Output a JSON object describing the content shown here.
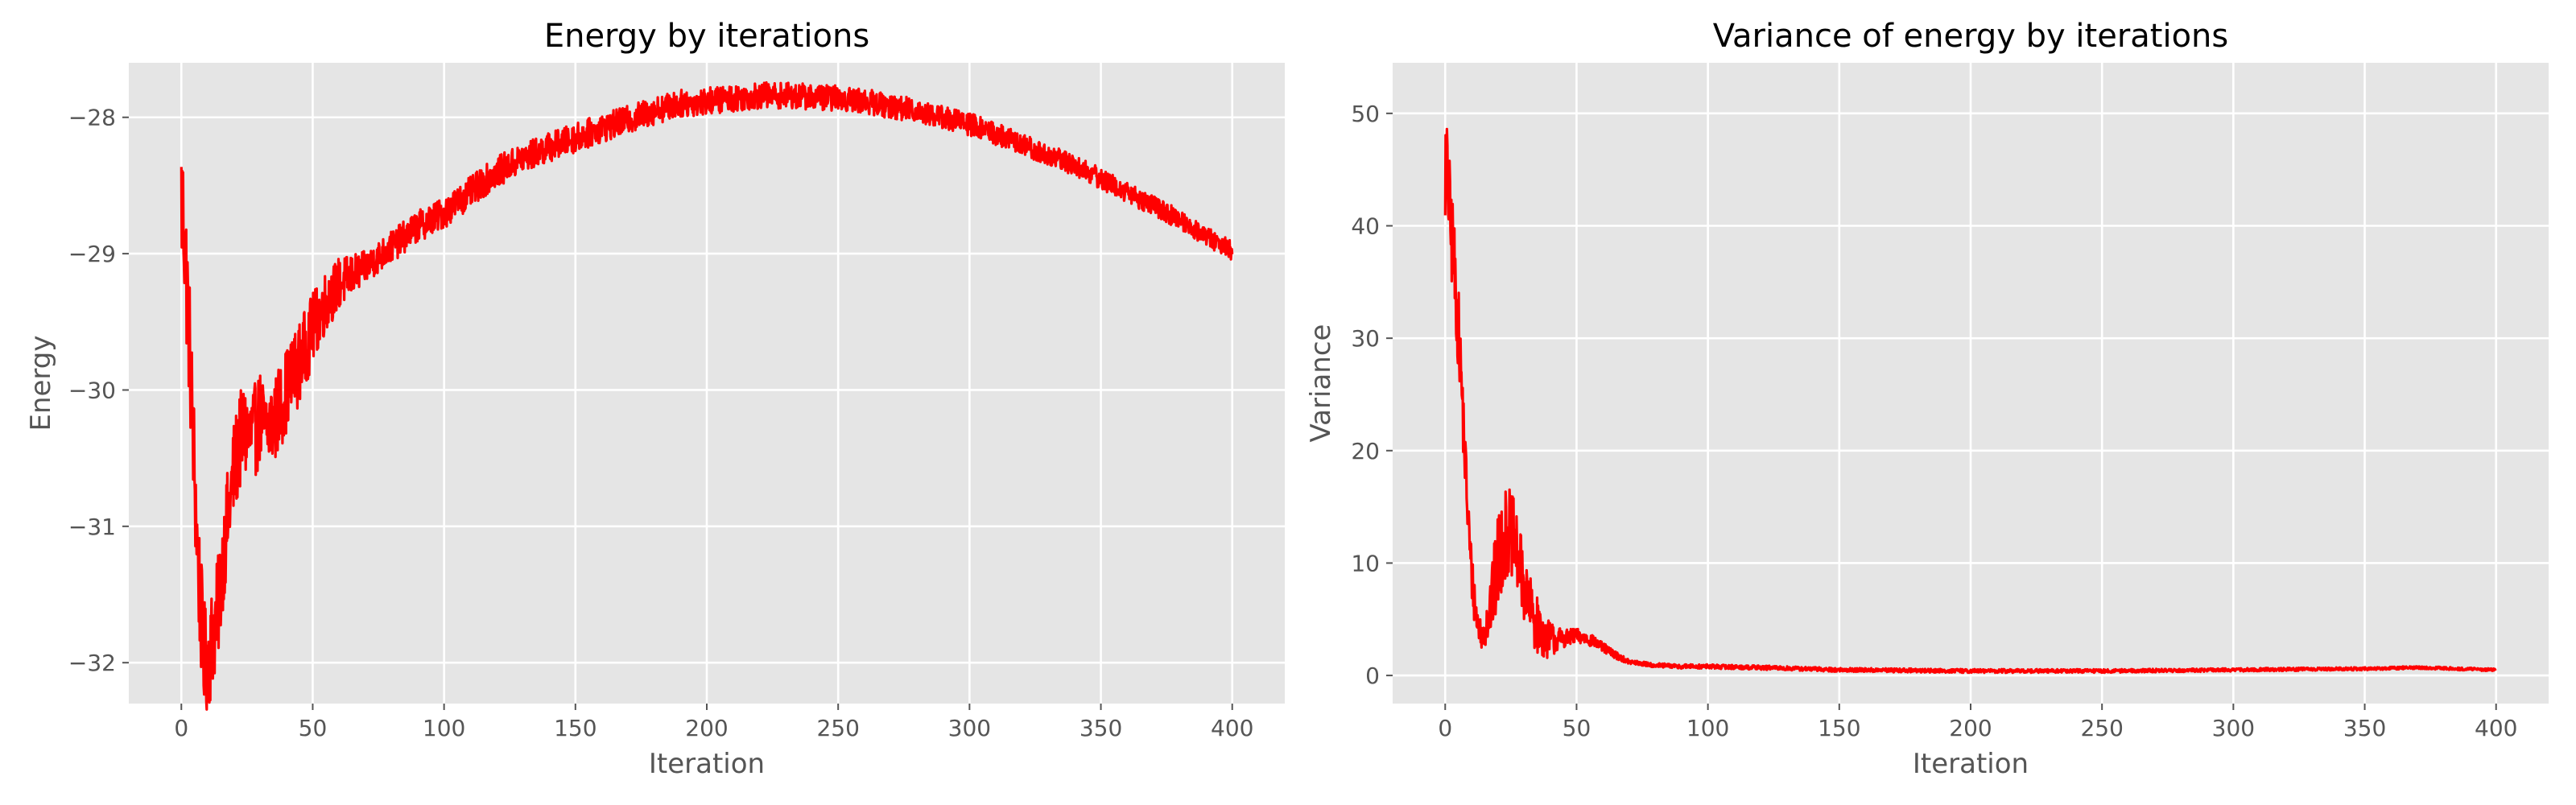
{
  "chart_data": [
    {
      "type": "line",
      "title": "Energy by iterations",
      "xlabel": "Iteration",
      "ylabel": "Energy",
      "xlim": [
        -20,
        420
      ],
      "ylim": [
        -32.3,
        -27.6
      ],
      "xticks": [
        0,
        50,
        100,
        150,
        200,
        250,
        300,
        350,
        400
      ],
      "yticks": [
        -32,
        -31,
        -30,
        -29,
        -28
      ],
      "ytick_labels": [
        "−32",
        "−31",
        "−30",
        "−29",
        "−28"
      ],
      "grid": true,
      "color": "#ff0000",
      "noise": [
        [
          0,
          0.55
        ],
        [
          10,
          0.4
        ],
        [
          45,
          0.3
        ],
        [
          70,
          0.12
        ],
        [
          400,
          0.07
        ]
      ],
      "series": [
        {
          "x": [
            0,
            1,
            2,
            3,
            4,
            5,
            6,
            7,
            8,
            9,
            10,
            11,
            12,
            14,
            16,
            18,
            20,
            22,
            24,
            26,
            28,
            30,
            32,
            34,
            36,
            38,
            40,
            45,
            50,
            55,
            60,
            70,
            80,
            90,
            100,
            110,
            120,
            130,
            140,
            150,
            160,
            170,
            180,
            190,
            200,
            210,
            220,
            230,
            240,
            250,
            260,
            270,
            280,
            290,
            300,
            310,
            320,
            330,
            340,
            350,
            360,
            370,
            380,
            390,
            400
          ],
          "y": [
            -28.6,
            -28.8,
            -29.2,
            -29.6,
            -30.1,
            -30.6,
            -31.1,
            -31.5,
            -31.8,
            -32.0,
            -31.95,
            -31.9,
            -31.8,
            -31.6,
            -31.2,
            -30.9,
            -30.6,
            -30.4,
            -30.3,
            -30.35,
            -30.3,
            -30.2,
            -30.3,
            -30.25,
            -30.2,
            -30.1,
            -30.0,
            -29.8,
            -29.55,
            -29.35,
            -29.22,
            -29.1,
            -28.95,
            -28.8,
            -28.7,
            -28.55,
            -28.4,
            -28.3,
            -28.22,
            -28.15,
            -28.08,
            -28.02,
            -27.95,
            -27.9,
            -27.88,
            -27.86,
            -27.84,
            -27.84,
            -27.85,
            -27.86,
            -27.88,
            -27.92,
            -27.95,
            -28.0,
            -28.05,
            -28.12,
            -28.2,
            -28.28,
            -28.35,
            -28.45,
            -28.55,
            -28.65,
            -28.75,
            -28.87,
            -28.98
          ]
        }
      ]
    },
    {
      "type": "line",
      "title": "Variance of energy by iterations",
      "xlabel": "Iteration",
      "ylabel": "Variance",
      "xlim": [
        -20,
        420
      ],
      "ylim": [
        -2.5,
        54.5
      ],
      "xticks": [
        0,
        50,
        100,
        150,
        200,
        250,
        300,
        350,
        400
      ],
      "yticks": [
        0,
        10,
        20,
        30,
        40,
        50
      ],
      "grid": true,
      "color": "#ff0000",
      "noise": [
        [
          0,
          5
        ],
        [
          8,
          3
        ],
        [
          14,
          1.2
        ],
        [
          20,
          4.5
        ],
        [
          32,
          3
        ],
        [
          45,
          0.8
        ],
        [
          70,
          0.2
        ],
        [
          400,
          0.12
        ]
      ],
      "series": [
        {
          "x": [
            0,
            1,
            2,
            3,
            4,
            5,
            6,
            7,
            8,
            10,
            12,
            14,
            16,
            18,
            20,
            22,
            24,
            26,
            28,
            30,
            32,
            34,
            36,
            38,
            40,
            45,
            50,
            55,
            60,
            65,
            70,
            80,
            90,
            100,
            120,
            150,
            200,
            250,
            300,
            350,
            370,
            400
          ],
          "y": [
            45,
            44,
            40,
            38,
            34,
            31,
            27,
            22,
            17,
            9,
            5,
            3.5,
            5,
            7,
            10,
            12,
            13,
            12,
            10,
            8,
            6,
            5,
            4,
            3.5,
            3.2,
            3.3,
            3.5,
            3.2,
            2.5,
            1.8,
            1.2,
            0.9,
            0.8,
            0.8,
            0.7,
            0.5,
            0.4,
            0.4,
            0.5,
            0.6,
            0.7,
            0.5
          ]
        }
      ]
    }
  ]
}
